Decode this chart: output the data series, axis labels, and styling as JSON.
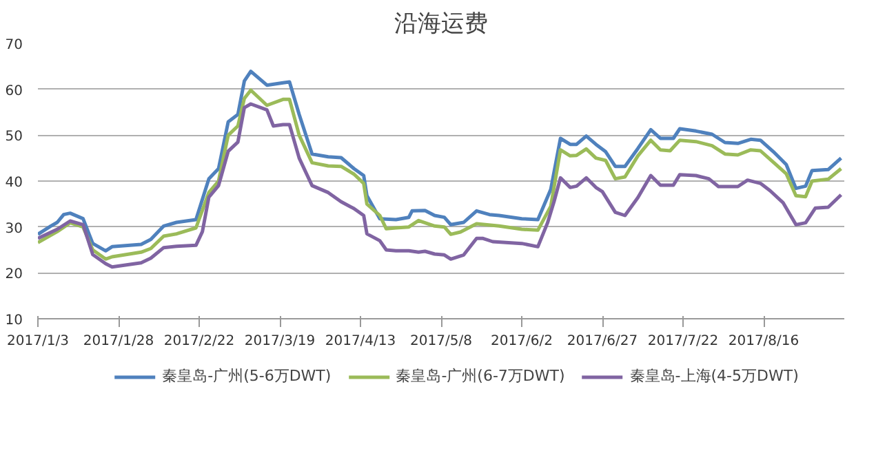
{
  "chart_data": {
    "type": "line",
    "title": "沿海运费",
    "xlim": [
      "2017-01-03",
      "2017-09-10"
    ],
    "xticks": [
      {
        "value": "2017-01-03",
        "label": "2017/1/3"
      },
      {
        "value": "2017-01-28",
        "label": "2017/1/28"
      },
      {
        "value": "2017-02-22",
        "label": "2017/2/22"
      },
      {
        "value": "2017-03-19",
        "label": "2017/3/19"
      },
      {
        "value": "2017-04-13",
        "label": "2017/4/13"
      },
      {
        "value": "2017-05-08",
        "label": "2017/5/8"
      },
      {
        "value": "2017-06-02",
        "label": "2017/6/2"
      },
      {
        "value": "2017-06-27",
        "label": "2017/6/27"
      },
      {
        "value": "2017-07-22",
        "label": "2017/7/22"
      },
      {
        "value": "2017-08-16",
        "label": "2017/8/16"
      }
    ],
    "ylim": [
      10,
      70
    ],
    "yticks": [
      10,
      20,
      30,
      40,
      50,
      60,
      70
    ],
    "grid": "y",
    "legend": "bottom",
    "marker": "none",
    "line_style": "solid",
    "series": [
      {
        "name": "秦皇岛-广州(5-6万DWT)",
        "color": "#4f81bd",
        "x": [
          "2017-01-03",
          "2017-01-07",
          "2017-01-09",
          "2017-01-11",
          "2017-01-13",
          "2017-01-17",
          "2017-01-20",
          "2017-01-24",
          "2017-01-26",
          "2017-02-04",
          "2017-02-07",
          "2017-02-11",
          "2017-02-15",
          "2017-02-21",
          "2017-02-25",
          "2017-02-28",
          "2017-03-03",
          "2017-03-06",
          "2017-03-08",
          "2017-03-10",
          "2017-03-15",
          "2017-03-20",
          "2017-03-22",
          "2017-03-25",
          "2017-03-29",
          "2017-04-03",
          "2017-04-07",
          "2017-04-11",
          "2017-04-14",
          "2017-04-15",
          "2017-04-19",
          "2017-04-24",
          "2017-04-28",
          "2017-04-29",
          "2017-05-03",
          "2017-05-06",
          "2017-05-09",
          "2017-05-11",
          "2017-05-15",
          "2017-05-19",
          "2017-05-23",
          "2017-05-26",
          "2017-06-02",
          "2017-06-07",
          "2017-06-11",
          "2017-06-14",
          "2017-06-17",
          "2017-06-19",
          "2017-06-22",
          "2017-06-25",
          "2017-06-28",
          "2017-07-01",
          "2017-07-04",
          "2017-07-08",
          "2017-07-12",
          "2017-07-15",
          "2017-07-19",
          "2017-07-21",
          "2017-07-26",
          "2017-07-31",
          "2017-08-04",
          "2017-08-08",
          "2017-08-12",
          "2017-08-15",
          "2017-08-19",
          "2017-08-23",
          "2017-08-26",
          "2017-08-29",
          "2017-08-31",
          "2017-09-05",
          "2017-09-09"
        ],
        "values": [
          28.4,
          30.2,
          31,
          32.7,
          33,
          31.8,
          26.4,
          24.8,
          25.7,
          26.2,
          27.3,
          30.2,
          31,
          31.6,
          40.5,
          42.7,
          52.9,
          54.5,
          61.8,
          63.9,
          60.9,
          61.4,
          61.6,
          54.5,
          45.9,
          45.3,
          45.1,
          42.7,
          41.2,
          36.8,
          31.8,
          31.6,
          32.1,
          33.5,
          33.6,
          32.5,
          32.1,
          30.5,
          31,
          33.5,
          32.7,
          32.5,
          31.8,
          31.6,
          38.2,
          49.3,
          48,
          48,
          49.8,
          48,
          46.4,
          43.2,
          43.2,
          47.1,
          51.2,
          49.3,
          49.3,
          51.4,
          50.9,
          50.2,
          48.4,
          48.2,
          49.1,
          48.9,
          46.4,
          43.6,
          38.4,
          38.9,
          42.3,
          42.5,
          45
        ]
      },
      {
        "name": "秦皇岛-广州(6-7万DWT)",
        "color": "#9bbb59",
        "x": [
          "2017-01-03",
          "2017-01-09",
          "2017-01-13",
          "2017-01-17",
          "2017-01-20",
          "2017-01-24",
          "2017-01-26",
          "2017-02-04",
          "2017-02-07",
          "2017-02-11",
          "2017-02-15",
          "2017-02-21",
          "2017-02-25",
          "2017-02-28",
          "2017-03-03",
          "2017-03-06",
          "2017-03-08",
          "2017-03-10",
          "2017-03-15",
          "2017-03-20",
          "2017-03-22",
          "2017-03-25",
          "2017-03-29",
          "2017-04-03",
          "2017-04-07",
          "2017-04-11",
          "2017-04-14",
          "2017-04-15",
          "2017-04-19",
          "2017-04-21",
          "2017-04-24",
          "2017-04-28",
          "2017-05-01",
          "2017-05-06",
          "2017-05-09",
          "2017-05-11",
          "2017-05-14",
          "2017-05-19",
          "2017-05-26",
          "2017-06-02",
          "2017-06-07",
          "2017-06-11",
          "2017-06-14",
          "2017-06-17",
          "2017-06-19",
          "2017-06-22",
          "2017-06-25",
          "2017-06-28",
          "2017-07-01",
          "2017-07-04",
          "2017-07-08",
          "2017-07-12",
          "2017-07-15",
          "2017-07-18",
          "2017-07-21",
          "2017-07-26",
          "2017-07-31",
          "2017-08-04",
          "2017-08-08",
          "2017-08-12",
          "2017-08-15",
          "2017-08-19",
          "2017-08-23",
          "2017-08-26",
          "2017-08-29",
          "2017-08-31",
          "2017-09-05",
          "2017-09-09"
        ],
        "values": [
          26.6,
          29,
          30.9,
          30,
          25,
          23,
          23.5,
          24.5,
          25.3,
          28,
          28.5,
          29.8,
          37.5,
          40,
          50,
          52,
          58,
          59.8,
          56.5,
          57.8,
          57.8,
          50,
          44,
          43.3,
          43.2,
          41.5,
          39.5,
          35,
          32.5,
          29.6,
          29.8,
          30,
          31.4,
          30.2,
          30,
          28.4,
          28.9,
          30.7,
          30.2,
          29.5,
          29.3,
          34.5,
          46.8,
          45.5,
          45.6,
          47,
          45,
          44.5,
          40.5,
          40.9,
          45.5,
          48.9,
          46.8,
          46.6,
          48.9,
          48.6,
          47.7,
          45.9,
          45.7,
          46.8,
          46.6,
          44.1,
          41.6,
          36.8,
          36.6,
          40,
          40.4,
          42.7
        ]
      },
      {
        "name": "秦皇岛-上海(4-5万DWT)",
        "color": "#8064a2",
        "x": [
          "2017-01-03",
          "2017-01-09",
          "2017-01-13",
          "2017-01-17",
          "2017-01-20",
          "2017-01-24",
          "2017-01-26",
          "2017-02-04",
          "2017-02-07",
          "2017-02-11",
          "2017-02-15",
          "2017-02-21",
          "2017-02-23",
          "2017-02-25",
          "2017-02-28",
          "2017-03-03",
          "2017-03-06",
          "2017-03-08",
          "2017-03-10",
          "2017-03-15",
          "2017-03-17",
          "2017-03-20",
          "2017-03-22",
          "2017-03-25",
          "2017-03-29",
          "2017-04-03",
          "2017-04-07",
          "2017-04-11",
          "2017-04-14",
          "2017-04-15",
          "2017-04-19",
          "2017-04-21",
          "2017-04-24",
          "2017-04-28",
          "2017-05-01",
          "2017-05-03",
          "2017-05-06",
          "2017-05-09",
          "2017-05-11",
          "2017-05-15",
          "2017-05-19",
          "2017-05-21",
          "2017-05-24",
          "2017-06-02",
          "2017-06-07",
          "2017-06-10",
          "2017-06-12",
          "2017-06-14",
          "2017-06-17",
          "2017-06-19",
          "2017-06-22",
          "2017-06-25",
          "2017-06-27",
          "2017-07-01",
          "2017-07-04",
          "2017-07-08",
          "2017-07-12",
          "2017-07-15",
          "2017-07-19",
          "2017-07-21",
          "2017-07-26",
          "2017-07-30",
          "2017-08-02",
          "2017-08-08",
          "2017-08-11",
          "2017-08-15",
          "2017-08-18",
          "2017-08-22",
          "2017-08-26",
          "2017-08-29",
          "2017-09-01",
          "2017-09-05",
          "2017-09-09"
        ],
        "values": [
          27.5,
          29.5,
          31.3,
          30.5,
          24,
          22,
          21.3,
          22.2,
          23.2,
          25.5,
          25.8,
          26,
          29,
          36.5,
          39,
          46.5,
          48.5,
          56,
          56.8,
          55.5,
          52,
          52.3,
          52.3,
          45,
          39,
          37.5,
          35.5,
          34,
          32.5,
          28.5,
          27,
          25,
          24.8,
          24.8,
          24.5,
          24.7,
          24.1,
          23.9,
          23,
          23.9,
          27.5,
          27.5,
          26.8,
          26.4,
          25.7,
          30.9,
          35.5,
          40.7,
          38.6,
          38.9,
          40.7,
          38.6,
          37.7,
          33.2,
          32.5,
          36.4,
          41.2,
          39.1,
          39.1,
          41.4,
          41.2,
          40.5,
          38.8,
          38.8,
          40.2,
          39.5,
          37.9,
          35.3,
          30.5,
          30.9,
          34.1,
          34.3,
          37
        ]
      }
    ]
  }
}
